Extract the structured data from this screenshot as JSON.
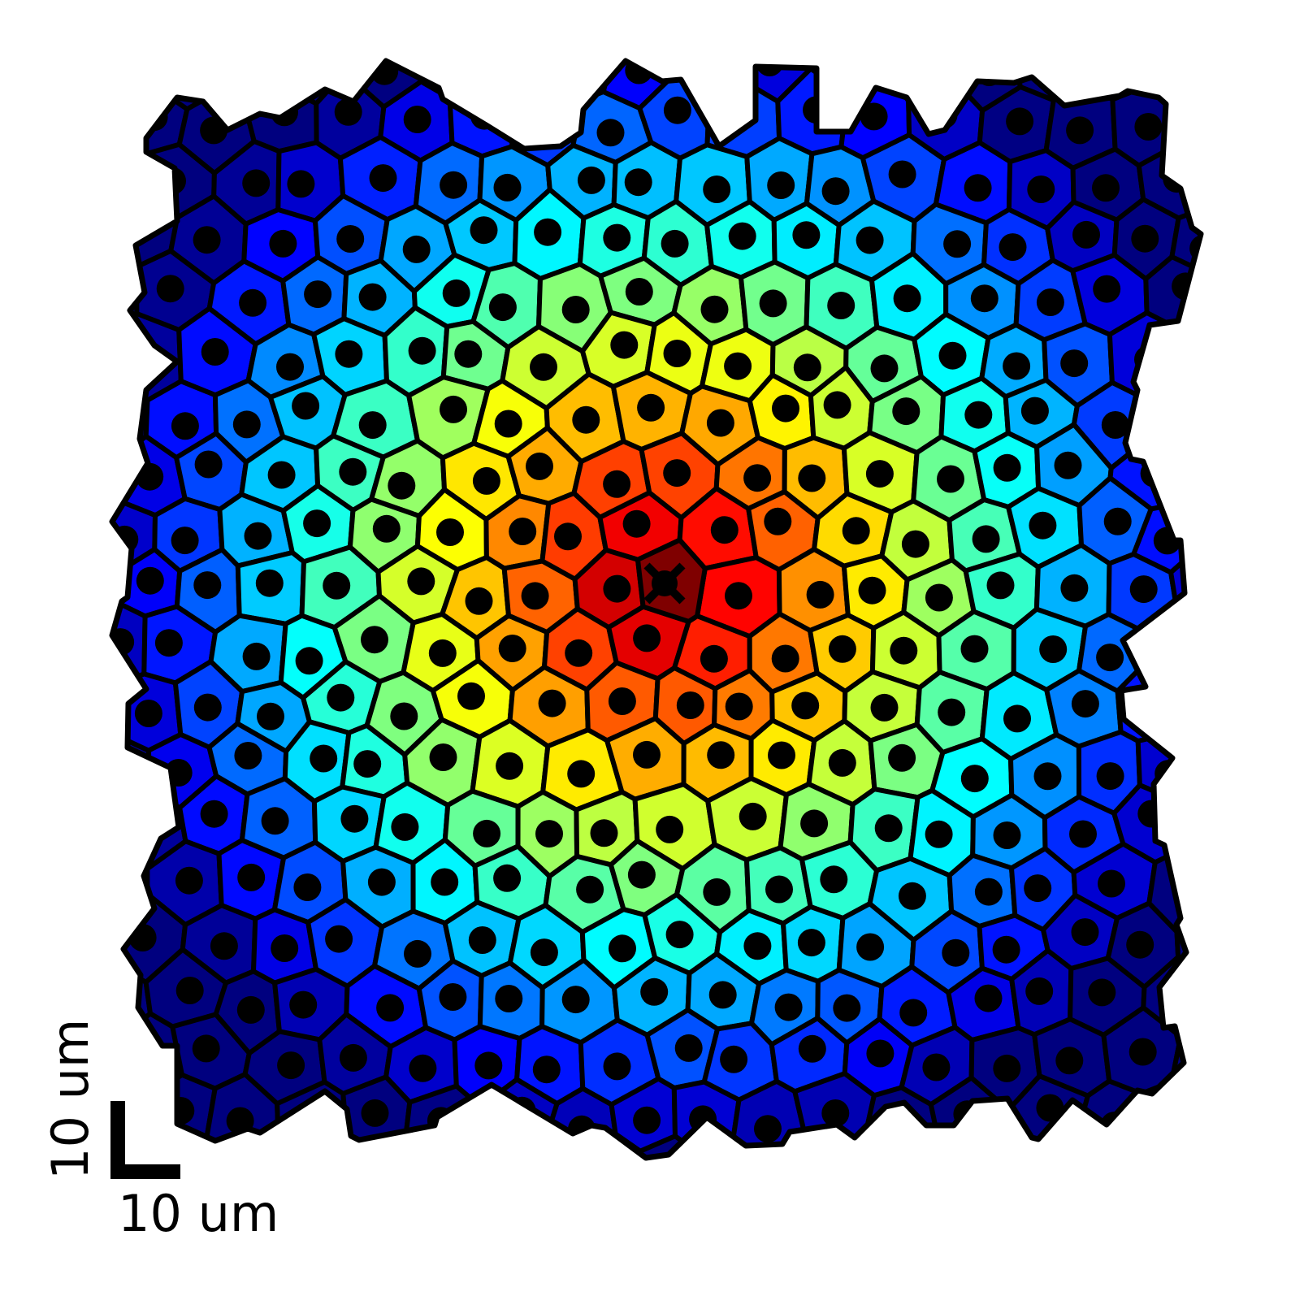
{
  "scale_bar": {
    "horizontal_label": "10 um",
    "vertical_label": "10 um"
  },
  "tissue": {
    "center_marker": "x-marker",
    "colormap": [
      "#00007f",
      "#0000ff",
      "#007fff",
      "#00ffff",
      "#7fff7f",
      "#ffff00",
      "#ff7f00",
      "#ff0000",
      "#7f0000"
    ],
    "outline_color": "#000000",
    "nucleus_color": "#000000"
  }
}
